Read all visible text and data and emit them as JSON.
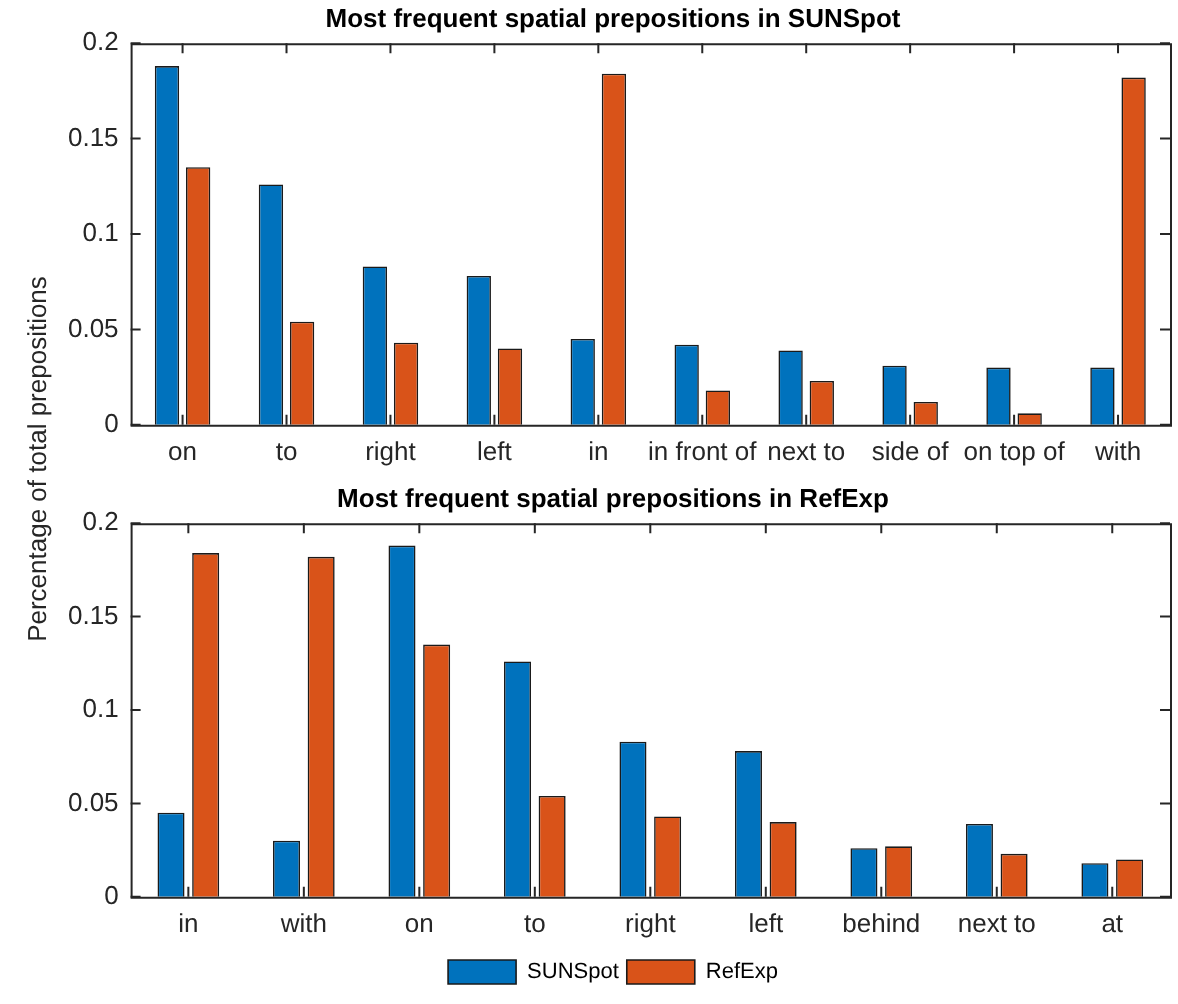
{
  "chart_data": [
    {
      "type": "bar",
      "title": "Most frequent spatial prepositions in SUNSpot",
      "ylabel": "Percentage of total prepositions",
      "categories": [
        "on",
        "to",
        "right",
        "left",
        "in",
        "in front of",
        "next to",
        "side of",
        "on top of",
        "with"
      ],
      "series": [
        {
          "color": "#0072bd",
          "values": [
            0.188,
            0.126,
            0.083,
            0.078,
            0.045,
            0.042,
            0.039,
            0.031,
            0.03,
            0.03
          ]
        },
        {
          "color": "#d95319",
          "values": [
            0.135,
            0.054,
            0.043,
            0.04,
            0.184,
            0.018,
            0.023,
            0.012,
            0.006,
            0.182
          ]
        }
      ],
      "ylim": [
        0,
        0.2
      ],
      "yticks": [
        0,
        0.05,
        0.1,
        0.15,
        0.2
      ],
      "legend": false
    },
    {
      "type": "bar",
      "title": "Most frequent spatial prepositions in RefExp",
      "categories": [
        "in",
        "with",
        "on",
        "to",
        "right",
        "left",
        "behind",
        "next to",
        "at"
      ],
      "series": [
        {
          "name": "SUNSpot",
          "color": "#0072bd",
          "values": [
            0.045,
            0.03,
            0.188,
            0.126,
            0.083,
            0.078,
            0.026,
            0.039,
            0.018
          ]
        },
        {
          "name": "RefExp",
          "color": "#d95319",
          "values": [
            0.184,
            0.182,
            0.135,
            0.054,
            0.043,
            0.04,
            0.027,
            0.023,
            0.02
          ]
        }
      ],
      "ylim": [
        0,
        0.2
      ],
      "yticks": [
        0,
        0.05,
        0.1,
        0.15,
        0.2
      ],
      "legend": "bottom"
    }
  ]
}
